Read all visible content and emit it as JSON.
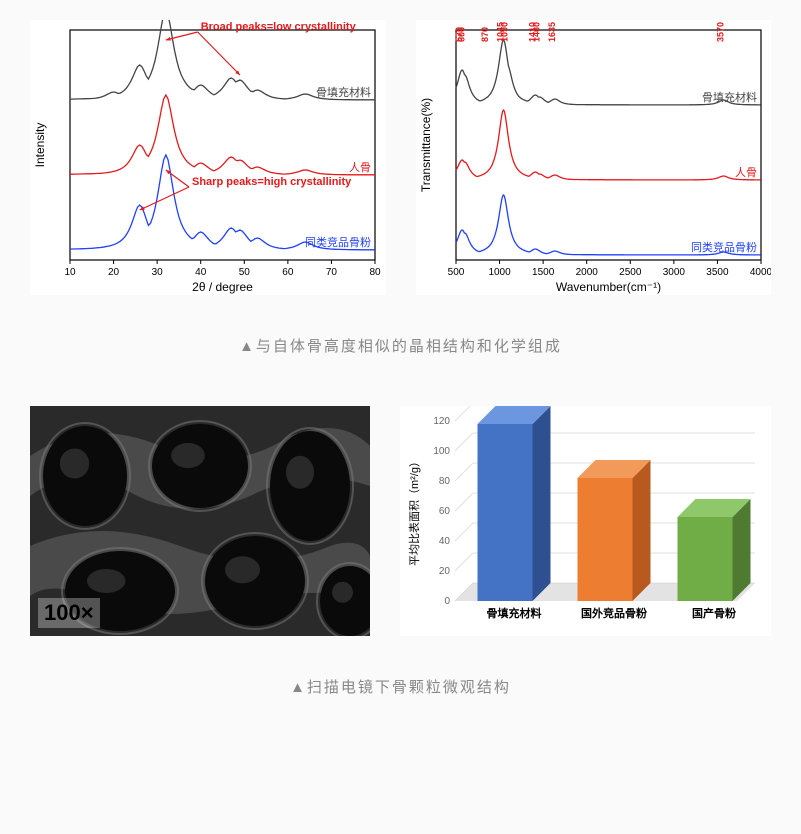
{
  "caption1": "▲与自体骨高度相似的晶相结构和化学组成",
  "caption2": "▲扫描电镜下骨颗粒微观结构",
  "xrd": {
    "type": "line",
    "xlabel": "2θ / degree",
    "ylabel": "Intensity",
    "xlim": [
      10,
      80
    ],
    "xtick_step": 10,
    "series": [
      {
        "name": "骨填充材料",
        "color": "#444444",
        "offset": 160,
        "peaks": [
          {
            "x": 20,
            "h": 8
          },
          {
            "x": 22,
            "h": 6
          },
          {
            "x": 26,
            "h": 35
          },
          {
            "x": 28,
            "h": 12
          },
          {
            "x": 32,
            "h": 90
          },
          {
            "x": 34,
            "h": 18
          },
          {
            "x": 40,
            "h": 15
          },
          {
            "x": 46,
            "h": 10
          },
          {
            "x": 47,
            "h": 22
          },
          {
            "x": 49,
            "h": 20
          },
          {
            "x": 50,
            "h": 12
          },
          {
            "x": 53,
            "h": 10
          },
          {
            "x": 64,
            "h": 6
          }
        ]
      },
      {
        "name": "人骨",
        "color": "#e41a1c",
        "offset": 85,
        "peaks": [
          {
            "x": 22,
            "h": 5
          },
          {
            "x": 26,
            "h": 30
          },
          {
            "x": 28,
            "h": 10
          },
          {
            "x": 32,
            "h": 80
          },
          {
            "x": 34,
            "h": 15
          },
          {
            "x": 40,
            "h": 12
          },
          {
            "x": 46,
            "h": 8
          },
          {
            "x": 47,
            "h": 18
          },
          {
            "x": 49,
            "h": 15
          },
          {
            "x": 53,
            "h": 8
          },
          {
            "x": 64,
            "h": 5
          }
        ]
      },
      {
        "name": "同类竞品骨粉",
        "color": "#2040ff",
        "offset": 10,
        "peaks": [
          {
            "x": 22,
            "h": 6
          },
          {
            "x": 26,
            "h": 45
          },
          {
            "x": 28,
            "h": 12
          },
          {
            "x": 29,
            "h": 8
          },
          {
            "x": 32,
            "h": 95
          },
          {
            "x": 33,
            "h": 30
          },
          {
            "x": 34,
            "h": 20
          },
          {
            "x": 40,
            "h": 18
          },
          {
            "x": 46,
            "h": 10
          },
          {
            "x": 47,
            "h": 22
          },
          {
            "x": 49,
            "h": 20
          },
          {
            "x": 50,
            "h": 12
          },
          {
            "x": 53,
            "h": 12
          },
          {
            "x": 64,
            "h": 8
          }
        ]
      }
    ],
    "annotations": [
      {
        "text": "Broad peaks=low crystallinity",
        "x": 40,
        "y_off": 230,
        "arrows": [
          {
            "tx": 32,
            "toff": 220
          },
          {
            "tx": 49,
            "toff": 185
          }
        ]
      },
      {
        "text": "Sharp peaks=high crystallinity",
        "x": 38,
        "y_off": 75,
        "arrows": [
          {
            "tx": 26,
            "toff": 50
          },
          {
            "tx": 32,
            "toff": 90
          }
        ]
      }
    ]
  },
  "ftir": {
    "type": "line",
    "xlabel": "Wavenumber(cm⁻¹)",
    "ylabel": "Transmittance(%)",
    "xlim": [
      500,
      4000
    ],
    "xtick_step": 500,
    "peak_labels": [
      570,
      600,
      870,
      1045,
      1090,
      1410,
      1460,
      1635,
      3570
    ],
    "series": [
      {
        "name": "骨填充材料",
        "color": "#444444",
        "offset": 155,
        "peaks": [
          {
            "x": 570,
            "h": 35
          },
          {
            "x": 600,
            "h": 30
          },
          {
            "x": 870,
            "h": 8
          },
          {
            "x": 1045,
            "h": 65
          },
          {
            "x": 1090,
            "h": 40
          },
          {
            "x": 1410,
            "h": 10
          },
          {
            "x": 1460,
            "h": 8
          },
          {
            "x": 1635,
            "h": 6
          },
          {
            "x": 3570,
            "h": 5
          }
        ]
      },
      {
        "name": "人骨",
        "color": "#e41a1c",
        "offset": 80,
        "peaks": [
          {
            "x": 570,
            "h": 20
          },
          {
            "x": 600,
            "h": 18
          },
          {
            "x": 870,
            "h": 6
          },
          {
            "x": 1045,
            "h": 70
          },
          {
            "x": 1090,
            "h": 35
          },
          {
            "x": 1410,
            "h": 8
          },
          {
            "x": 1460,
            "h": 6
          },
          {
            "x": 1635,
            "h": 5
          },
          {
            "x": 3570,
            "h": 4
          }
        ]
      },
      {
        "name": "同类竞品骨粉",
        "color": "#2040ff",
        "offset": 5,
        "peaks": [
          {
            "x": 570,
            "h": 25
          },
          {
            "x": 600,
            "h": 22
          },
          {
            "x": 870,
            "h": 5
          },
          {
            "x": 1045,
            "h": 60
          },
          {
            "x": 1090,
            "h": 30
          },
          {
            "x": 1410,
            "h": 6
          },
          {
            "x": 1635,
            "h": 4
          },
          {
            "x": 3570,
            "h": 3
          }
        ]
      }
    ]
  },
  "sem": {
    "magnification_label": "100×",
    "background_color": "#2a2a2a",
    "pore_color": "#0a0a0a",
    "highlight_color": "#888888"
  },
  "bar_chart": {
    "type": "bar",
    "ylabel": "平均比表面积（m²/g）",
    "ylim": [
      0,
      120
    ],
    "ytick_step": 20,
    "categories": [
      "骨填充材料",
      "国外竞品骨粉",
      "国产骨粉"
    ],
    "values": [
      118,
      82,
      56
    ],
    "bar_colors": [
      "#4472c4",
      "#ed7d31",
      "#70ad47"
    ],
    "side_colors": [
      "#2e5090",
      "#b85a1f",
      "#4e7a32"
    ],
    "top_colors": [
      "#6d96e0",
      "#f29a5a",
      "#8fc76b"
    ],
    "grid_color": "#e0e0e0",
    "floor_color": "#d0d0d0",
    "bar_width": 0.55
  }
}
